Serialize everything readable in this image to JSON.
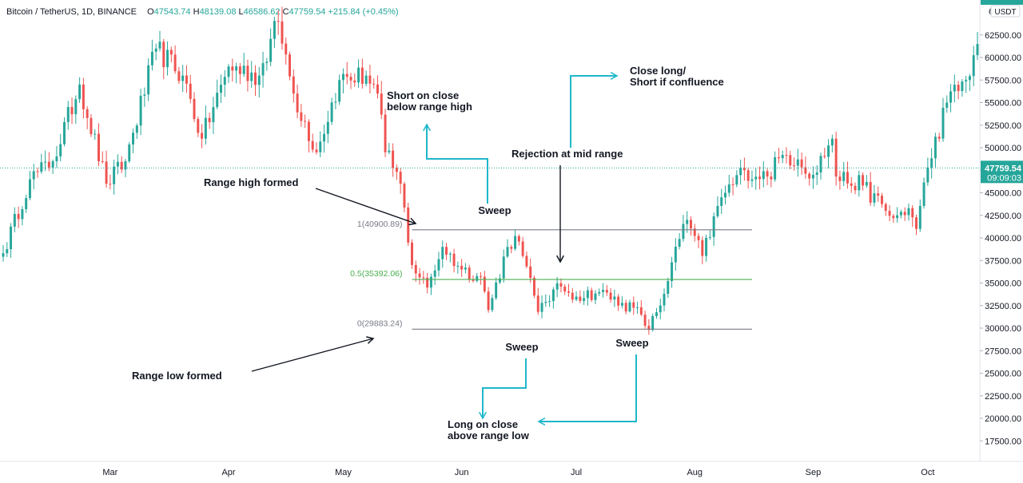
{
  "header": {
    "symbol": "Bitcoin / TetherUS, 1D, BINANCE",
    "o_label": "O",
    "o": "47543.74",
    "h_label": "H",
    "h": "48139.08",
    "l_label": "L",
    "l": "46586.62",
    "c_label": "C",
    "c": "47759.54",
    "change": "+215.84 (+0.45%)"
  },
  "colors": {
    "up": "#26a69a",
    "down": "#ef5350",
    "annotation": "#1fb7c9",
    "fib_mid": "#4caf50",
    "fib_line": "#787b86",
    "price_line": "#26a69a"
  },
  "price_axis": {
    "currency": "USDT",
    "current_price": "47759.54",
    "countdown": "09:09:03",
    "top_partial": "6",
    "ticks": [
      "62500.00",
      "60000.00",
      "57500.00",
      "55000.00",
      "52500.00",
      "50000.00",
      "47500.00",
      "45000.00",
      "42500.00",
      "40000.00",
      "37500.00",
      "35000.00",
      "32500.00",
      "30000.00",
      "27500.00",
      "25000.00",
      "22500.00",
      "20000.00",
      "17500.00"
    ]
  },
  "chart_data": {
    "type": "candlestick",
    "title": "Bitcoin / TetherUS, 1D, BINANCE",
    "x_range": [
      "2021-02-01",
      "2021-10-14"
    ],
    "ylim": [
      15000,
      66000
    ],
    "x_ticks": [
      "Mar",
      "Apr",
      "May",
      "Jun",
      "Jul",
      "Aug",
      "Sep",
      "Oct"
    ],
    "close_path": [
      [
        "2021-02-01",
        38300
      ],
      [
        "2021-02-08",
        46500
      ],
      [
        "2021-02-14",
        48500
      ],
      [
        "2021-02-21",
        57000
      ],
      [
        "2021-02-28",
        46000
      ],
      [
        "2021-03-05",
        48500
      ],
      [
        "2021-03-13",
        61000
      ],
      [
        "2021-03-20",
        58000
      ],
      [
        "2021-03-25",
        51000
      ],
      [
        "2021-04-01",
        59000
      ],
      [
        "2021-04-09",
        58000
      ],
      [
        "2021-04-14",
        64000
      ],
      [
        "2021-04-18",
        56000
      ],
      [
        "2021-04-24",
        49500
      ],
      [
        "2021-04-30",
        57500
      ],
      [
        "2021-05-07",
        58000
      ],
      [
        "2021-05-10",
        56000
      ],
      [
        "2021-05-12",
        49500
      ],
      [
        "2021-05-16",
        46000
      ],
      [
        "2021-05-19",
        37000
      ],
      [
        "2021-05-23",
        34500
      ],
      [
        "2021-05-27",
        39000
      ],
      [
        "2021-06-01",
        36500
      ],
      [
        "2021-06-06",
        35700
      ],
      [
        "2021-06-08",
        32000
      ],
      [
        "2021-06-13",
        39000
      ],
      [
        "2021-06-15",
        40200
      ],
      [
        "2021-06-17",
        38000
      ],
      [
        "2021-06-21",
        31800
      ],
      [
        "2021-06-22",
        32800
      ],
      [
        "2021-06-27",
        34600
      ],
      [
        "2021-07-01",
        33500
      ],
      [
        "2021-07-07",
        34000
      ],
      [
        "2021-07-13",
        32800
      ],
      [
        "2021-07-18",
        31500
      ],
      [
        "2021-07-20",
        29800
      ],
      [
        "2021-07-24",
        33800
      ],
      [
        "2021-07-26",
        37300
      ],
      [
        "2021-07-30",
        42000
      ],
      [
        "2021-08-03",
        38000
      ],
      [
        "2021-08-08",
        44500
      ],
      [
        "2021-08-14",
        47500
      ],
      [
        "2021-08-20",
        46800
      ],
      [
        "2021-08-24",
        49200
      ],
      [
        "2021-08-28",
        48700
      ],
      [
        "2021-09-01",
        47000
      ],
      [
        "2021-09-06",
        51000
      ],
      [
        "2021-09-07",
        46800
      ],
      [
        "2021-09-14",
        45800
      ],
      [
        "2021-09-20",
        43000
      ],
      [
        "2021-09-22",
        42200
      ],
      [
        "2021-09-26",
        43300
      ],
      [
        "2021-09-28",
        41000
      ],
      [
        "2021-10-01",
        47800
      ],
      [
        "2021-10-06",
        55000
      ],
      [
        "2021-10-11",
        57500
      ],
      [
        "2021-10-14",
        61500
      ]
    ],
    "fib_levels": [
      {
        "ratio": 1,
        "price": 40900.89,
        "label": "1(40900.89)"
      },
      {
        "ratio": 0.5,
        "price": 35392.06,
        "label": "0.5(35392.06)"
      },
      {
        "ratio": 0,
        "price": 29883.24,
        "label": "0(29883.24)"
      }
    ],
    "fib_span": [
      "2021-05-19",
      "2021-08-16"
    ],
    "annotations": {
      "range_high": "Range high formed",
      "range_low": "Range low formed",
      "sweep_top": "Sweep",
      "sweep_low1": "Sweep",
      "sweep_low2": "Sweep",
      "short_line1": "Short on close",
      "short_line2": "below range high",
      "rejection": "Rejection at mid range",
      "close_line1": "Close long/",
      "close_line2": "Short if confluence",
      "long_line1": "Long on close",
      "long_line2": "above range low"
    }
  }
}
